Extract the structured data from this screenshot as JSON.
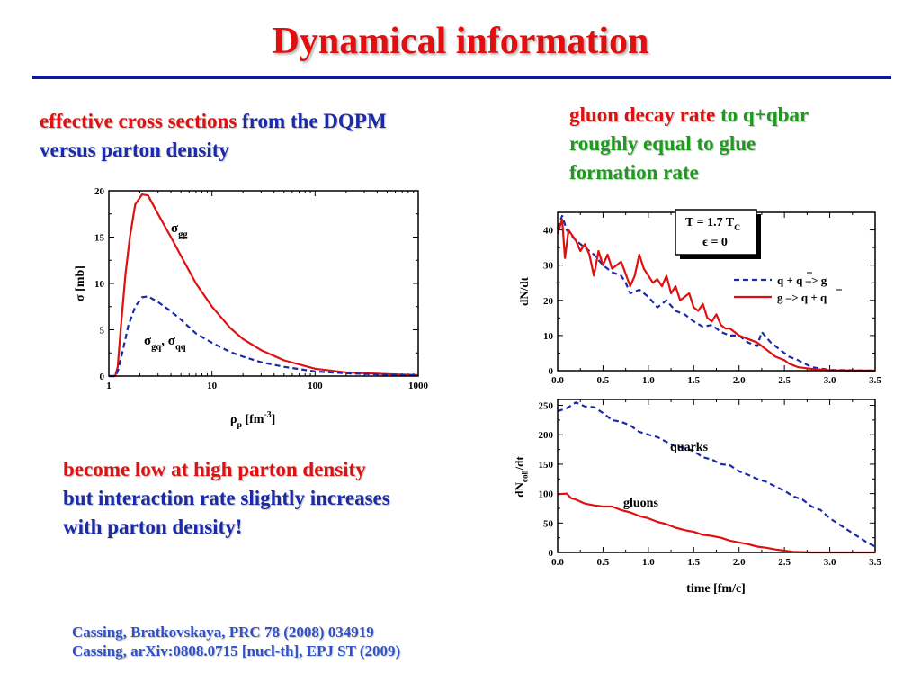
{
  "slide": {
    "title": "Dynamical information",
    "left_text": {
      "part1": "effective cross sections",
      "part2": " from the ",
      "part3": "DQPM",
      "line2": "versus parton density"
    },
    "right_text": {
      "part1": "gluon decay rate",
      "part2": " to q+qbar",
      "line2": "roughly equal to glue",
      "line3": "formation rate"
    },
    "bottom_text": {
      "line1": "become low at high parton density",
      "line2": "but interaction rate slightly increases",
      "line3": "with parton density!"
    },
    "citations": [
      "Cassing, Bratkovskaya, PRC 78 (2008) 034919",
      "Cassing,  arXiv:0808.0715 [nucl-th], EPJ  ST (2009)"
    ]
  },
  "colors": {
    "title": "#e01010",
    "rule": "#10189a",
    "red": "#e01010",
    "blue": "#1a2aa8",
    "green": "#1e9a1e",
    "citation": "#3050c8"
  },
  "chart_data": [
    {
      "id": "cross-section",
      "type": "line",
      "xscale": "log",
      "xlim": [
        1,
        1000
      ],
      "ylim": [
        0,
        20
      ],
      "xticks": [
        "1",
        "10",
        "100",
        "1000"
      ],
      "yticks": [
        "0",
        "5",
        "10",
        "15",
        "20"
      ],
      "xlabel": {
        "main": "ρ",
        "sub": "p",
        "mid": " [fm",
        "sup": "-3",
        "end": "]"
      },
      "ylabel": "σ [mb]",
      "series": [
        {
          "name": "σgg",
          "label": {
            "main": "σ",
            "sub": "gg"
          },
          "color": "#e01010",
          "dash": false,
          "points": [
            [
              1,
              0
            ],
            [
              1.15,
              0
            ],
            [
              1.22,
              1
            ],
            [
              1.3,
              5
            ],
            [
              1.45,
              11
            ],
            [
              1.6,
              15
            ],
            [
              1.8,
              18.5
            ],
            [
              2.1,
              19.6
            ],
            [
              2.4,
              19.5
            ],
            [
              3,
              17.5
            ],
            [
              4,
              15
            ],
            [
              5,
              13
            ],
            [
              7,
              10
            ],
            [
              10,
              7.5
            ],
            [
              15,
              5.2
            ],
            [
              20,
              4
            ],
            [
              30,
              2.8
            ],
            [
              50,
              1.7
            ],
            [
              100,
              0.8
            ],
            [
              200,
              0.4
            ],
            [
              500,
              0.2
            ],
            [
              1000,
              0.1
            ]
          ]
        },
        {
          "name": "σgq, σqq",
          "label": {
            "a": "σ",
            "asub": "gq",
            "sep": ", σ",
            "bsub": "qq"
          },
          "color": "#1a2aa8",
          "dash": true,
          "points": [
            [
              1,
              0
            ],
            [
              1.15,
              0
            ],
            [
              1.22,
              0.5
            ],
            [
              1.35,
              2.5
            ],
            [
              1.55,
              5.5
            ],
            [
              1.8,
              7.5
            ],
            [
              2.1,
              8.5
            ],
            [
              2.4,
              8.6
            ],
            [
              3,
              8
            ],
            [
              4,
              7
            ],
            [
              5,
              6.1
            ],
            [
              7,
              4.6
            ],
            [
              10,
              3.6
            ],
            [
              15,
              2.6
            ],
            [
              20,
              2.1
            ],
            [
              30,
              1.5
            ],
            [
              50,
              1
            ],
            [
              100,
              0.5
            ],
            [
              200,
              0.3
            ],
            [
              500,
              0.15
            ],
            [
              1000,
              0.1
            ]
          ]
        }
      ]
    },
    {
      "id": "decay-rate",
      "type": "line",
      "xlim": [
        0,
        3.5
      ],
      "ylim": [
        0,
        45
      ],
      "xticks": [
        "0.0",
        "0.5",
        "1.0",
        "1.5",
        "2.0",
        "2.5",
        "3.0",
        "3.5"
      ],
      "yticks": [
        "0",
        "10",
        "20",
        "30",
        "40"
      ],
      "ylabel": "dN/dt",
      "annotation": {
        "line1_main": "T = 1.7 T",
        "line1_sub": "C",
        "line2": "ϵ = 0"
      },
      "series": [
        {
          "name": "q + q̄ –> g",
          "label": {
            "a": "q + ",
            "b": "q",
            "c": " –> g"
          },
          "color": "#1a2aa8",
          "dash": true,
          "points": [
            [
              0,
              40.5
            ],
            [
              0.05,
              44
            ],
            [
              0.1,
              40
            ],
            [
              0.2,
              37
            ],
            [
              0.3,
              35
            ],
            [
              0.4,
              33
            ],
            [
              0.5,
              30
            ],
            [
              0.6,
              28
            ],
            [
              0.7,
              27
            ],
            [
              0.75,
              25
            ],
            [
              0.8,
              22
            ],
            [
              0.9,
              23
            ],
            [
              1.0,
              21
            ],
            [
              1.1,
              18
            ],
            [
              1.2,
              20
            ],
            [
              1.3,
              17
            ],
            [
              1.4,
              16
            ],
            [
              1.5,
              14
            ],
            [
              1.6,
              12.5
            ],
            [
              1.7,
              13
            ],
            [
              1.8,
              11
            ],
            [
              1.9,
              10
            ],
            [
              2.0,
              10
            ],
            [
              2.1,
              8
            ],
            [
              2.2,
              7
            ],
            [
              2.25,
              11
            ],
            [
              2.35,
              8
            ],
            [
              2.45,
              6
            ],
            [
              2.55,
              4
            ],
            [
              2.65,
              3
            ],
            [
              2.8,
              1
            ],
            [
              3.0,
              0.2
            ],
            [
              3.5,
              0
            ]
          ]
        },
        {
          "name": "g –> q + q̄",
          "label": {
            "a": "g –> q + ",
            "b": "q"
          },
          "color": "#e01010",
          "dash": false,
          "points": [
            [
              0,
              39
            ],
            [
              0.05,
              43
            ],
            [
              0.08,
              32
            ],
            [
              0.12,
              40
            ],
            [
              0.2,
              37
            ],
            [
              0.25,
              34
            ],
            [
              0.3,
              36
            ],
            [
              0.35,
              33
            ],
            [
              0.4,
              27
            ],
            [
              0.45,
              34
            ],
            [
              0.5,
              30
            ],
            [
              0.55,
              33
            ],
            [
              0.6,
              29
            ],
            [
              0.7,
              31
            ],
            [
              0.8,
              24
            ],
            [
              0.85,
              27
            ],
            [
              0.9,
              33
            ],
            [
              0.95,
              29
            ],
            [
              1.0,
              27
            ],
            [
              1.05,
              25
            ],
            [
              1.1,
              26
            ],
            [
              1.15,
              24
            ],
            [
              1.2,
              27
            ],
            [
              1.25,
              22
            ],
            [
              1.3,
              24
            ],
            [
              1.35,
              20
            ],
            [
              1.45,
              22
            ],
            [
              1.5,
              18
            ],
            [
              1.55,
              17
            ],
            [
              1.6,
              19
            ],
            [
              1.65,
              15
            ],
            [
              1.7,
              14
            ],
            [
              1.75,
              16
            ],
            [
              1.8,
              13
            ],
            [
              1.85,
              12
            ],
            [
              1.9,
              12
            ],
            [
              2.0,
              10
            ],
            [
              2.1,
              9
            ],
            [
              2.2,
              8
            ],
            [
              2.3,
              6
            ],
            [
              2.4,
              4
            ],
            [
              2.5,
              3
            ],
            [
              2.55,
              2
            ],
            [
              2.65,
              1
            ],
            [
              2.8,
              0.5
            ],
            [
              3.0,
              0.1
            ],
            [
              3.5,
              0
            ]
          ]
        }
      ]
    },
    {
      "id": "collision-rate",
      "type": "line",
      "xlim": [
        0,
        3.5
      ],
      "ylim": [
        0,
        260
      ],
      "xticks": [
        "0.0",
        "0.5",
        "1.0",
        "1.5",
        "2.0",
        "2.5",
        "3.0",
        "3.5"
      ],
      "yticks": [
        "0",
        "50",
        "100",
        "150",
        "200",
        "250"
      ],
      "xlabel": "time [fm/c]",
      "ylabel": {
        "main": "dN",
        "sub": "coll",
        "end": "/dt"
      },
      "series": [
        {
          "name": "quarks",
          "color": "#1a2aa8",
          "dash": true,
          "points": [
            [
              0,
              240
            ],
            [
              0.1,
              245
            ],
            [
              0.2,
              255
            ],
            [
              0.3,
              248
            ],
            [
              0.4,
              247
            ],
            [
              0.5,
              237
            ],
            [
              0.6,
              225
            ],
            [
              0.7,
              222
            ],
            [
              0.8,
              216
            ],
            [
              0.9,
              205
            ],
            [
              1.0,
              200
            ],
            [
              1.1,
              196
            ],
            [
              1.2,
              188
            ],
            [
              1.3,
              180
            ],
            [
              1.4,
              178
            ],
            [
              1.5,
              172
            ],
            [
              1.6,
              162
            ],
            [
              1.7,
              158
            ],
            [
              1.8,
              150
            ],
            [
              1.9,
              148
            ],
            [
              2.0,
              138
            ],
            [
              2.1,
              132
            ],
            [
              2.2,
              125
            ],
            [
              2.3,
              120
            ],
            [
              2.4,
              112
            ],
            [
              2.5,
              105
            ],
            [
              2.6,
              95
            ],
            [
              2.7,
              90
            ],
            [
              2.8,
              78
            ],
            [
              2.9,
              72
            ],
            [
              3.0,
              58
            ],
            [
              3.1,
              48
            ],
            [
              3.2,
              38
            ],
            [
              3.3,
              28
            ],
            [
              3.4,
              18
            ],
            [
              3.5,
              10
            ]
          ]
        },
        {
          "name": "gluons",
          "color": "#e01010",
          "dash": false,
          "points": [
            [
              0,
              99
            ],
            [
              0.1,
              100
            ],
            [
              0.15,
              92
            ],
            [
              0.2,
              90
            ],
            [
              0.3,
              83
            ],
            [
              0.4,
              80
            ],
            [
              0.5,
              78
            ],
            [
              0.6,
              78
            ],
            [
              0.7,
              72
            ],
            [
              0.8,
              68
            ],
            [
              0.9,
              62
            ],
            [
              1.0,
              58
            ],
            [
              1.1,
              52
            ],
            [
              1.2,
              48
            ],
            [
              1.3,
              42
            ],
            [
              1.4,
              38
            ],
            [
              1.5,
              35
            ],
            [
              1.6,
              30
            ],
            [
              1.7,
              28
            ],
            [
              1.8,
              25
            ],
            [
              1.9,
              20
            ],
            [
              2.0,
              17
            ],
            [
              2.1,
              14
            ],
            [
              2.2,
              10
            ],
            [
              2.3,
              8
            ],
            [
              2.4,
              5
            ],
            [
              2.5,
              3
            ],
            [
              2.6,
              1
            ],
            [
              2.8,
              0
            ],
            [
              3.5,
              0
            ]
          ]
        }
      ]
    }
  ]
}
